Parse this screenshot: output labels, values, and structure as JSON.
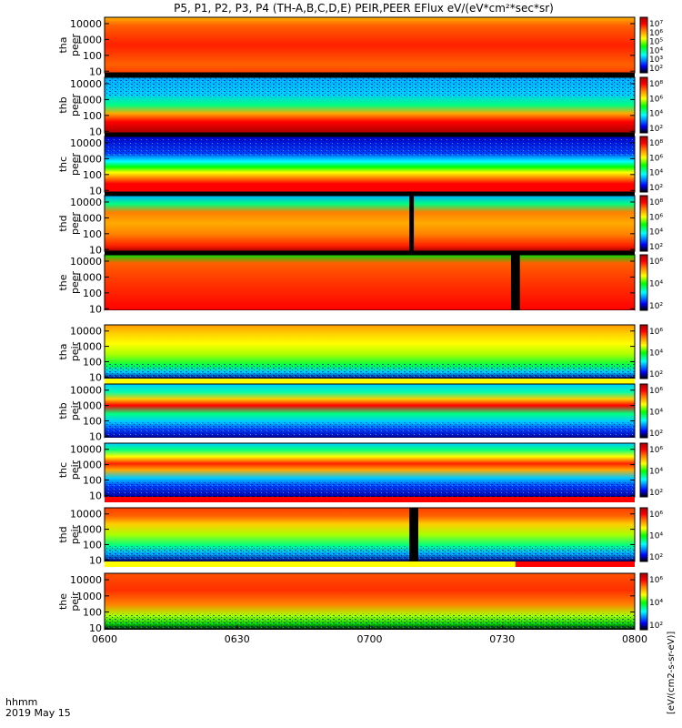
{
  "chart_data": {
    "type": "heatmap",
    "title": "P5, P1, P2, P3, P4 (TH-A,B,C,D,E) PEIR,PEER EFlux eV/(eV*cm²*sec*sr)",
    "x_ticks": [
      "0600",
      "0630",
      "0700",
      "0730",
      "0800"
    ],
    "x_range": [
      "0600",
      "0800"
    ],
    "corner_labels": [
      "hhmm",
      "2019 May 15"
    ],
    "y_ticks": [
      "10",
      "100",
      "1000",
      "10000"
    ],
    "panels": [
      {
        "line1": "tha",
        "line2": "peer",
        "profile": "peer_a",
        "bar": "#000000"
      },
      {
        "line1": "thb",
        "line2": "peer",
        "profile": "peer_b",
        "bar": "#000000"
      },
      {
        "line1": "thc",
        "line2": "peer",
        "profile": "peer_c",
        "bar": "#000000"
      },
      {
        "line1": "thd",
        "line2": "peer",
        "profile": "peer_d",
        "bar": "#000000",
        "gap": {
          "start": "0709",
          "end": "0710"
        }
      },
      {
        "line1": "the",
        "line2": "peer",
        "profile": "peer_e",
        "bar": "#ffffff",
        "gap": {
          "start": "0732",
          "end": "0734"
        }
      },
      {
        "line1": "tha",
        "line2": "peir",
        "profile": "peir_a",
        "bar": "#ffff00"
      },
      {
        "line1": "thb",
        "line2": "peir",
        "profile": "peir_b",
        "bar": "#ffffff"
      },
      {
        "line1": "thc",
        "line2": "peir",
        "profile": "peir_c",
        "bar": "#ff0000"
      },
      {
        "line1": "thd",
        "line2": "peir",
        "profile": "peir_d",
        "bar": "#ffff00",
        "bar_split": {
          "at": "0733",
          "color": "#ff0000"
        },
        "gap": {
          "start": "0709",
          "end": "0711"
        }
      },
      {
        "line1": "the",
        "line2": "peir",
        "profile": "peir_e",
        "bar": "#ffffff"
      }
    ],
    "colorbars": [
      {
        "ticks": [
          "10⁷",
          "10⁶",
          "10⁵",
          "10⁴",
          "10³",
          "10²"
        ]
      },
      {
        "ticks": [
          "10⁸",
          "10⁶",
          "10⁴",
          "10²"
        ]
      },
      {
        "ticks": [
          "10⁸",
          "10⁶",
          "10⁴",
          "10²"
        ]
      },
      {
        "ticks": [
          "10⁸",
          "10⁶",
          "10⁴",
          "10²"
        ]
      },
      {
        "ticks": [
          "10⁶",
          "10⁴",
          "10²"
        ]
      },
      {
        "ticks": [
          "10⁶",
          "10⁴",
          "10²"
        ]
      },
      {
        "ticks": [
          "10⁶",
          "10⁴",
          "10²"
        ]
      },
      {
        "ticks": [
          "10⁶",
          "10⁴",
          "10²"
        ]
      },
      {
        "ticks": [
          "10⁶",
          "10⁴",
          "10²"
        ]
      },
      {
        "ticks": [
          "10⁶",
          "10⁴",
          "10²"
        ]
      }
    ],
    "colorbar_label": "[eV/(cm2-s-sr-eV)]",
    "colormap": [
      "#000000",
      "#0000ff",
      "#00ffff",
      "#00ff00",
      "#ffff00",
      "#ff8000",
      "#ff0000",
      "#aa0000"
    ]
  }
}
